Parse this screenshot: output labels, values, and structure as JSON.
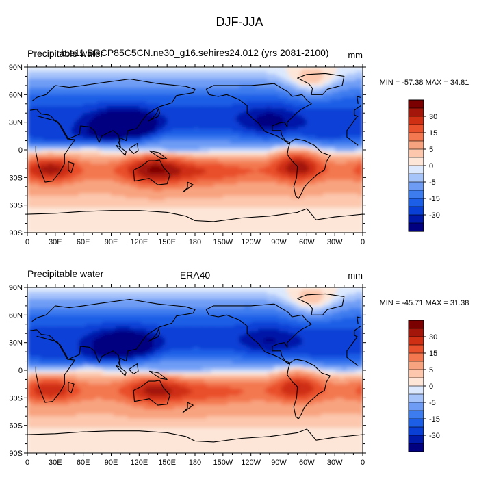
{
  "title": "DJF-JJA",
  "colors": {
    "levels": [
      -30,
      -25,
      -20,
      -15,
      -10,
      -5,
      -2,
      0,
      2,
      5,
      10,
      15,
      20,
      25,
      30
    ],
    "fills": [
      "#000080",
      "#0019a8",
      "#0a3fd6",
      "#1c5fe6",
      "#3d7cef",
      "#6e9cf5",
      "#a6c3fa",
      "#dbe8fd",
      "#fde6d8",
      "#fcc7ad",
      "#f8a37f",
      "#f3784f",
      "#e9502c",
      "#cf2f12",
      "#a31609",
      "#7b0000"
    ],
    "ocean_base": "#fde6d8",
    "coast": "#000000"
  },
  "colorbar_labels": [
    "30",
    "15",
    "5",
    "0",
    "-5",
    "-15",
    "-30"
  ],
  "lon_ticks": [
    "0",
    "30E",
    "60E",
    "90E",
    "120E",
    "150E",
    "180",
    "150W",
    "120W",
    "90W",
    "60W",
    "30W",
    "0"
  ],
  "lat_ticks": [
    "90N",
    "60N",
    "30N",
    "0",
    "30S",
    "60S",
    "90S"
  ],
  "panels": [
    {
      "left_title": "Precipitable water",
      "center_title": "b.e11.BRCP85C5CN.ne30_g16.sehires24.012 (yrs 2081-2100)",
      "units": "mm",
      "stats": "MIN = -57.38 MAX =  34.81",
      "min": -57.38,
      "max": 34.81
    },
    {
      "left_title": "Precipitable water",
      "center_title": "ERA40",
      "units": "mm",
      "stats": "MIN = -45.71 MAX =  31.38",
      "min": -45.71,
      "max": 31.38
    }
  ]
}
